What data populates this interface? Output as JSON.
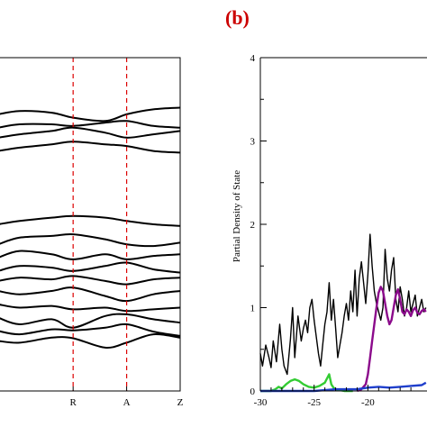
{
  "figure": {
    "panel_b_label": "(b)"
  },
  "chart_data": [
    {
      "type": "line",
      "panel": "a",
      "xticks": [
        "R",
        "A",
        "Z"
      ],
      "kpoint_lines": [
        "R",
        "A"
      ],
      "kpoint_line_color": "#dd0000",
      "band_color": "#000000",
      "grid": false,
      "bands": [
        {
          "name": "",
          "x": [
            -0.4,
            0.0,
            0.6,
            1.0,
            1.6,
            2.0,
            2.5,
            3.0
          ],
          "y": [
            0.15,
            0.145,
            0.16,
            0.158,
            0.13,
            0.145,
            0.17,
            0.16
          ]
        },
        {
          "name": "",
          "x": [
            -0.4,
            0.0,
            0.6,
            1.0,
            1.6,
            2.0,
            2.5,
            3.0
          ],
          "y": [
            0.18,
            0.17,
            0.185,
            0.182,
            0.19,
            0.2,
            0.178,
            0.165
          ]
        },
        {
          "name": "",
          "x": [
            -0.4,
            0.0,
            0.6,
            1.0,
            1.6,
            2.0,
            2.5,
            3.0
          ],
          "y": [
            0.22,
            0.2,
            0.215,
            0.19,
            0.225,
            0.23,
            0.215,
            0.205
          ]
        },
        {
          "name": "",
          "x": [
            -0.4,
            0.0,
            0.6,
            1.0,
            1.6,
            2.0,
            2.5,
            3.0
          ],
          "y": [
            0.26,
            0.25,
            0.255,
            0.245,
            0.25,
            0.24,
            0.245,
            0.25
          ]
        },
        {
          "name": "",
          "x": [
            -0.4,
            0.0,
            0.6,
            1.0,
            1.6,
            2.0,
            2.5,
            3.0
          ],
          "y": [
            0.3,
            0.29,
            0.3,
            0.31,
            0.285,
            0.27,
            0.29,
            0.3
          ]
        },
        {
          "name": "",
          "x": [
            -0.4,
            0.0,
            0.6,
            1.0,
            1.6,
            2.0,
            2.5,
            3.0
          ],
          "y": [
            0.33,
            0.34,
            0.335,
            0.345,
            0.33,
            0.32,
            0.335,
            0.34
          ]
        },
        {
          "name": "",
          "x": [
            -0.4,
            0.0,
            0.6,
            1.0,
            1.6,
            2.0,
            2.5,
            3.0
          ],
          "y": [
            0.36,
            0.375,
            0.37,
            0.36,
            0.375,
            0.385,
            0.365,
            0.355
          ]
        },
        {
          "name": "",
          "x": [
            -0.4,
            0.0,
            0.6,
            1.0,
            1.6,
            2.0,
            2.5,
            3.0
          ],
          "y": [
            0.4,
            0.42,
            0.41,
            0.395,
            0.41,
            0.395,
            0.405,
            0.41
          ]
        },
        {
          "name": "",
          "x": [
            -0.4,
            0.0,
            0.6,
            1.0,
            1.6,
            2.0,
            2.5,
            3.0
          ],
          "y": [
            0.44,
            0.46,
            0.465,
            0.47,
            0.455,
            0.44,
            0.435,
            0.445
          ]
        },
        {
          "name": "",
          "x": [
            -0.4,
            0.0,
            0.6,
            1.0,
            1.6,
            2.0,
            2.5,
            3.0
          ],
          "y": [
            0.5,
            0.51,
            0.52,
            0.525,
            0.52,
            0.51,
            0.5,
            0.495
          ]
        },
        {
          "name": "",
          "x": [
            -0.4,
            0.0,
            0.6,
            1.0,
            1.6,
            2.0,
            2.5,
            3.0
          ],
          "y": [
            0.72,
            0.73,
            0.74,
            0.748,
            0.74,
            0.735,
            0.72,
            0.715
          ]
        },
        {
          "name": "",
          "x": [
            -0.4,
            0.0,
            0.6,
            1.0,
            1.6,
            2.0,
            2.5,
            3.0
          ],
          "y": [
            0.76,
            0.77,
            0.78,
            0.79,
            0.775,
            0.76,
            0.77,
            0.78
          ]
        },
        {
          "name": "",
          "x": [
            -0.4,
            0.0,
            0.6,
            1.0,
            1.6,
            2.0,
            2.5,
            3.0
          ],
          "y": [
            0.79,
            0.8,
            0.8,
            0.795,
            0.805,
            0.81,
            0.795,
            0.79
          ]
        },
        {
          "name": "",
          "x": [
            -0.4,
            0.0,
            0.6,
            1.0,
            1.6,
            2.0,
            2.5,
            3.0
          ],
          "y": [
            0.83,
            0.84,
            0.835,
            0.82,
            0.81,
            0.83,
            0.845,
            0.85
          ]
        }
      ]
    },
    {
      "type": "line",
      "panel": "b",
      "ylabel": "Partial Density of State",
      "xlim": [
        -30,
        -14
      ],
      "ylim": [
        0,
        4
      ],
      "xticks": [
        -30,
        -25,
        -20
      ],
      "yticks": [
        0,
        1,
        2,
        3,
        4
      ],
      "grid": false,
      "series": [
        {
          "name": "",
          "color": "#000000",
          "x": [
            -30,
            -29.8,
            -29.5,
            -29.2,
            -29.0,
            -28.8,
            -28.5,
            -28.2,
            -28.0,
            -27.8,
            -27.5,
            -27.2,
            -27.0,
            -26.8,
            -26.5,
            -26.2,
            -26.0,
            -25.8,
            -25.6,
            -25.4,
            -25.2,
            -25.0,
            -24.8,
            -24.6,
            -24.4,
            -24.2,
            -24.0,
            -23.8,
            -23.6,
            -23.4,
            -23.2,
            -23.0,
            -22.8,
            -22.6,
            -22.4,
            -22.2,
            -22.0,
            -21.8,
            -21.6,
            -21.4,
            -21.2,
            -21.0,
            -20.8,
            -20.6,
            -20.4,
            -20.2,
            -20.0,
            -19.8,
            -19.6,
            -19.4,
            -19.2,
            -19.0,
            -18.8,
            -18.6,
            -18.4,
            -18.2,
            -18.0,
            -17.8,
            -17.6,
            -17.4,
            -17.2,
            -17.0,
            -16.8,
            -16.6,
            -16.4,
            -16.2,
            -16.0,
            -15.8,
            -15.6,
            -15.4,
            -15.2,
            -15.0,
            -14.8,
            -14.6
          ],
          "y": [
            0.45,
            0.3,
            0.55,
            0.4,
            0.28,
            0.6,
            0.35,
            0.8,
            0.5,
            0.3,
            0.2,
            0.62,
            1.0,
            0.4,
            0.9,
            0.6,
            0.75,
            0.85,
            0.7,
            1.0,
            1.1,
            0.85,
            0.65,
            0.45,
            0.3,
            0.55,
            0.8,
            0.95,
            1.3,
            0.85,
            1.1,
            0.75,
            0.4,
            0.55,
            0.7,
            0.9,
            1.05,
            0.85,
            1.2,
            0.95,
            1.45,
            0.9,
            1.35,
            1.55,
            1.3,
            1.05,
            1.4,
            1.88,
            1.5,
            1.2,
            1.05,
            0.95,
            0.85,
            1.0,
            1.7,
            1.35,
            1.2,
            1.45,
            1.6,
            1.1,
            0.95,
            1.25,
            1.1,
            0.9,
            1.0,
            1.2,
            0.95,
            1.05,
            1.15,
            0.9,
            1.0,
            1.1,
            0.95,
            1.0
          ]
        },
        {
          "name": "",
          "color": "#8b0a8b",
          "x": [
            -21.0,
            -20.6,
            -20.2,
            -20.0,
            -19.8,
            -19.6,
            -19.4,
            -19.2,
            -19.0,
            -18.8,
            -18.6,
            -18.4,
            -18.2,
            -18.0,
            -17.8,
            -17.6,
            -17.4,
            -17.2,
            -17.0,
            -16.8,
            -16.6,
            -16.4,
            -16.2,
            -16.0,
            -15.8,
            -15.6,
            -15.4,
            -15.2,
            -15.0,
            -14.8,
            -14.6
          ],
          "y": [
            0.0,
            0.02,
            0.08,
            0.2,
            0.4,
            0.6,
            0.8,
            1.0,
            1.18,
            1.25,
            1.2,
            1.05,
            0.9,
            0.8,
            0.85,
            1.0,
            1.15,
            1.22,
            1.1,
            0.95,
            0.92,
            0.98,
            0.95,
            0.9,
            0.97,
            1.0,
            0.94,
            0.92,
            0.96,
            0.98,
            0.95
          ]
        },
        {
          "name": "",
          "color": "#33cc33",
          "x": [
            -30,
            -29.0,
            -28.6,
            -28.3,
            -28.0,
            -27.6,
            -27.2,
            -26.8,
            -26.4,
            -26.0,
            -25.5,
            -25.0,
            -24.5,
            -24.0,
            -23.6,
            -23.4,
            -23.2,
            -23.0,
            -22.6,
            -22.2,
            -21.8,
            -21.4
          ],
          "y": [
            0.0,
            0.0,
            0.02,
            0.05,
            0.03,
            0.08,
            0.12,
            0.14,
            0.12,
            0.08,
            0.05,
            0.04,
            0.06,
            0.1,
            0.2,
            0.08,
            0.04,
            0.02,
            0.01,
            0.0,
            0.0,
            0.0
          ]
        },
        {
          "name": "",
          "color": "#1f3fcc",
          "x": [
            -30,
            -29.0,
            -28.0,
            -27.0,
            -26.0,
            -25.0,
            -24.0,
            -23.0,
            -22.0,
            -21.0,
            -20.0,
            -19.0,
            -18.0,
            -17.0,
            -16.0,
            -15.0,
            -14.6
          ],
          "y": [
            0.0,
            0.0,
            0.0,
            0.0,
            0.0,
            0.0,
            0.01,
            0.02,
            0.02,
            0.02,
            0.04,
            0.05,
            0.04,
            0.05,
            0.06,
            0.07,
            0.1
          ]
        }
      ]
    }
  ]
}
